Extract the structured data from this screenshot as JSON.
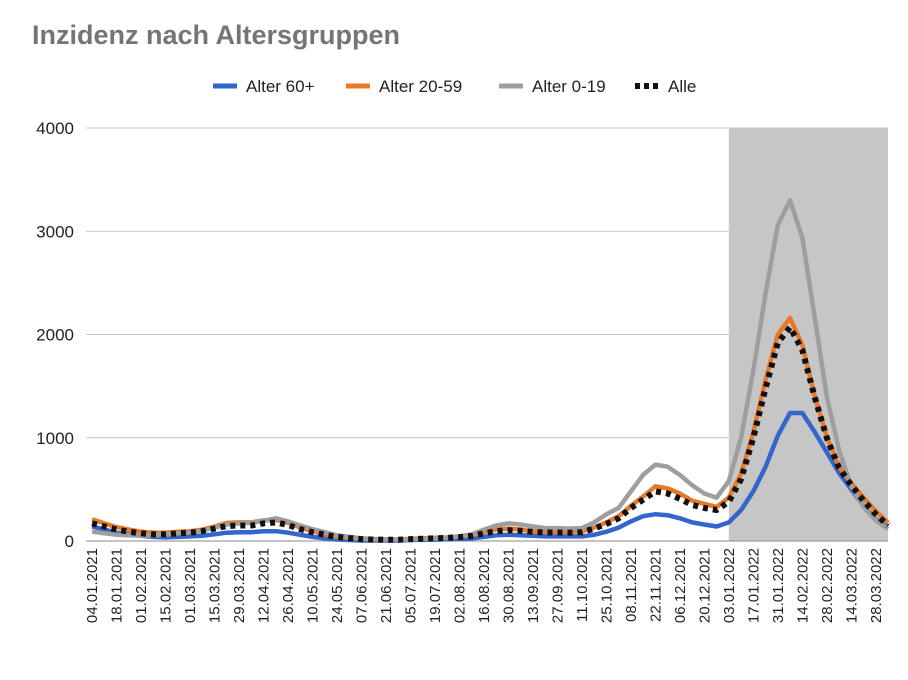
{
  "chart_data": {
    "type": "line",
    "title": "Inzidenz nach Altersgruppen",
    "ylim": [
      0,
      4000
    ],
    "yticks": [
      "0",
      "1000",
      "2000",
      "3000",
      "4000"
    ],
    "grid": true,
    "legend_position": "top-center",
    "x": [
      "04.01.2021",
      "11.01.2021",
      "18.01.2021",
      "25.01.2021",
      "01.02.2021",
      "08.02.2021",
      "15.02.2021",
      "22.02.2021",
      "01.03.2021",
      "08.03.2021",
      "15.03.2021",
      "22.03.2021",
      "29.03.2021",
      "05.04.2021",
      "12.04.2021",
      "19.04.2021",
      "26.04.2021",
      "03.05.2021",
      "10.05.2021",
      "17.05.2021",
      "24.05.2021",
      "31.05.2021",
      "07.06.2021",
      "14.06.2021",
      "21.06.2021",
      "28.06.2021",
      "05.07.2021",
      "12.07.2021",
      "19.07.2021",
      "26.07.2021",
      "02.08.2021",
      "09.08.2021",
      "16.08.2021",
      "23.08.2021",
      "30.08.2021",
      "06.09.2021",
      "13.09.2021",
      "20.09.2021",
      "27.09.2021",
      "04.10.2021",
      "11.10.2021",
      "18.10.2021",
      "25.10.2021",
      "01.11.2021",
      "08.11.2021",
      "15.11.2021",
      "22.11.2021",
      "29.11.2021",
      "06.12.2021",
      "13.12.2021",
      "20.12.2021",
      "27.12.2021",
      "03.01.2022",
      "10.01.2022",
      "17.01.2022",
      "24.01.2022",
      "31.01.2022",
      "07.02.2022",
      "14.02.2022",
      "21.02.2022",
      "28.02.2022",
      "07.03.2022",
      "14.03.2022",
      "21.03.2022",
      "28.03.2022",
      "04.04.2022"
    ],
    "xtick_labels": [
      "04.01.2021",
      "18.01.2021",
      "01.02.2021",
      "15.02.2021",
      "01.03.2021",
      "15.03.2021",
      "29.03.2021",
      "12.04.2021",
      "26.04.2021",
      "10.05.2021",
      "24.05.2021",
      "07.06.2021",
      "21.06.2021",
      "05.07.2021",
      "19.07.2021",
      "02.08.2021",
      "16.08.2021",
      "30.08.2021",
      "13.09.2021",
      "27.09.2021",
      "11.10.2021",
      "25.10.2021",
      "08.11.2021",
      "22.11.2021",
      "06.12.2021",
      "20.12.2021",
      "03.01.2022",
      "17.01.2022",
      "31.01.2022",
      "14.02.2022",
      "28.02.2022",
      "14.03.2022",
      "28.03.2022"
    ],
    "shaded_region": {
      "from": "03.01.2022",
      "to": "04.04.2022",
      "color": "#c6c6c6"
    },
    "series": [
      {
        "name": "Alter 60+",
        "color": "#3366cc",
        "style": "solid",
        "values": [
          140,
          110,
          80,
          65,
          50,
          40,
          35,
          40,
          45,
          50,
          65,
          80,
          85,
          85,
          95,
          95,
          80,
          60,
          40,
          25,
          15,
          10,
          5,
          5,
          5,
          5,
          10,
          12,
          14,
          16,
          20,
          25,
          40,
          55,
          60,
          55,
          50,
          45,
          45,
          45,
          45,
          60,
          90,
          130,
          190,
          240,
          260,
          250,
          220,
          180,
          160,
          140,
          180,
          300,
          480,
          720,
          1020,
          1240,
          1240,
          1060,
          860,
          660,
          500,
          340,
          210,
          140
        ]
      },
      {
        "name": "Alter 20-59",
        "color": "#e8792a",
        "style": "solid",
        "values": [
          210,
          170,
          135,
          110,
          90,
          80,
          80,
          90,
          95,
          110,
          140,
          175,
          180,
          180,
          200,
          205,
          175,
          130,
          95,
          65,
          40,
          30,
          20,
          15,
          15,
          15,
          20,
          25,
          30,
          35,
          45,
          55,
          85,
          110,
          120,
          110,
          95,
          90,
          90,
          90,
          95,
          130,
          180,
          240,
          340,
          430,
          530,
          510,
          460,
          390,
          360,
          330,
          420,
          650,
          1050,
          1560,
          2000,
          2160,
          1900,
          1410,
          1010,
          720,
          560,
          420,
          290,
          175
        ]
      },
      {
        "name": "Alter 0-19",
        "color": "#9e9e9e",
        "style": "solid",
        "values": [
          90,
          75,
          60,
          55,
          50,
          55,
          60,
          75,
          85,
          100,
          130,
          160,
          170,
          175,
          195,
          220,
          190,
          150,
          115,
          85,
          55,
          40,
          25,
          20,
          15,
          15,
          15,
          20,
          25,
          30,
          45,
          65,
          110,
          150,
          170,
          160,
          140,
          125,
          125,
          120,
          125,
          180,
          260,
          320,
          480,
          640,
          740,
          720,
          640,
          540,
          460,
          420,
          580,
          1000,
          1650,
          2400,
          3060,
          3300,
          2940,
          2180,
          1400,
          880,
          530,
          330,
          200,
          115
        ]
      },
      {
        "name": "Alle",
        "color": "#111111",
        "style": "dotted",
        "values": [
          170,
          140,
          110,
          90,
          75,
          65,
          65,
          75,
          80,
          95,
          120,
          145,
          150,
          150,
          170,
          180,
          155,
          115,
          85,
          60,
          40,
          28,
          18,
          14,
          13,
          13,
          18,
          22,
          26,
          30,
          38,
          48,
          75,
          95,
          105,
          100,
          88,
          82,
          82,
          80,
          85,
          120,
          165,
          220,
          320,
          400,
          480,
          460,
          410,
          350,
          320,
          300,
          380,
          600,
          1000,
          1480,
          1920,
          2070,
          1850,
          1400,
          1000,
          710,
          540,
          390,
          260,
          150
        ]
      }
    ]
  }
}
